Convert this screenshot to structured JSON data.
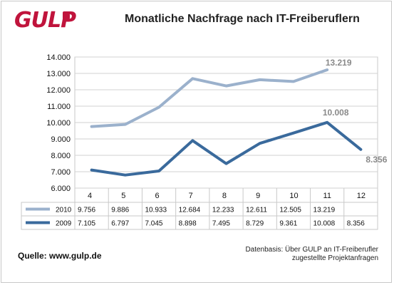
{
  "logo": {
    "text": "GULP"
  },
  "chart_data": {
    "type": "line",
    "title": "Monatliche Nachfrage nach IT-Freiberuflern",
    "categories": [
      "4",
      "5",
      "6",
      "7",
      "8",
      "9",
      "10",
      "11",
      "12"
    ],
    "ylim": [
      6000,
      14000
    ],
    "yticks": [
      "6.000",
      "7.000",
      "8.000",
      "9.000",
      "10.000",
      "11.000",
      "12.000",
      "13.000",
      "14.000"
    ],
    "grid": true,
    "series": [
      {
        "name": "2010",
        "color": "#9bb1cc",
        "values": [
          9756,
          9886,
          10933,
          12684,
          12233,
          12611,
          12505,
          13219,
          null
        ],
        "labels": [
          "9.756",
          "9.886",
          "10.933",
          "12.684",
          "12.233",
          "12.611",
          "12.505",
          "13.219",
          ""
        ]
      },
      {
        "name": "2009",
        "color": "#3a6a9c",
        "values": [
          7105,
          6797,
          7045,
          8898,
          7495,
          8729,
          9361,
          10008,
          8356
        ],
        "labels": [
          "7.105",
          "6.797",
          "7.045",
          "8.898",
          "7.495",
          "8.729",
          "9.361",
          "10.008",
          "8.356"
        ]
      }
    ],
    "annotations": [
      {
        "series": 0,
        "index": 7,
        "text": "13.219"
      },
      {
        "series": 1,
        "index": 7,
        "text": "10.008"
      },
      {
        "series": 1,
        "index": 8,
        "text": "8.356"
      }
    ]
  },
  "footer": {
    "source": "Quelle: www.gulp.de",
    "basis_line1": "Datenbasis: Über GULP an IT-Freiberufler",
    "basis_line2": "zugestellte Projektanfragen"
  }
}
